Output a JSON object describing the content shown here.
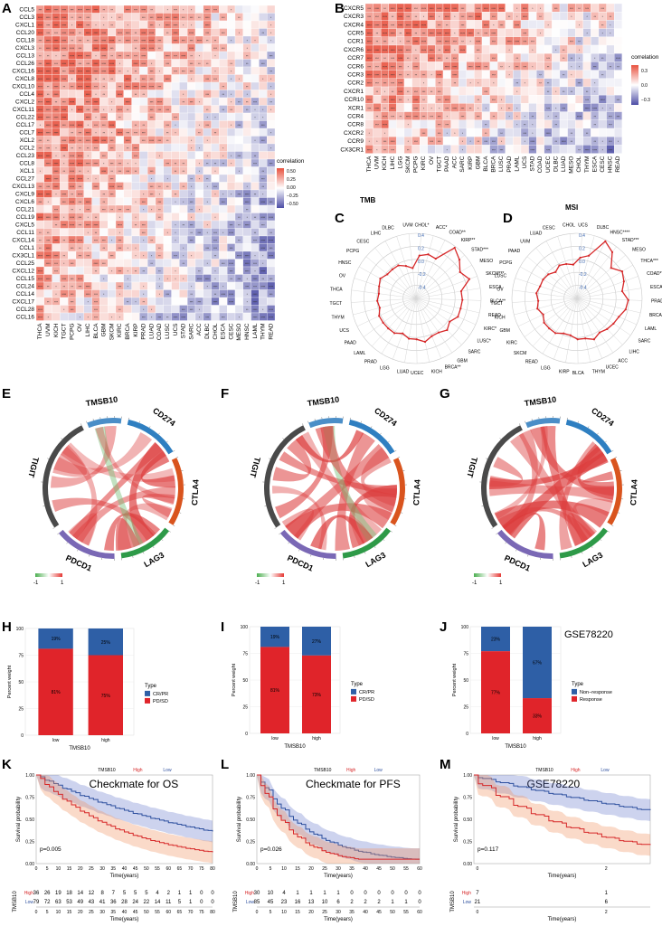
{
  "panels": {
    "A": "A",
    "B": "B",
    "C": "C",
    "D": "D",
    "E": "E",
    "F": "F",
    "G": "G",
    "H": "H",
    "I": "I",
    "J": "J",
    "K": "K",
    "L": "L",
    "M": "M"
  },
  "heatmapA": {
    "rows": [
      "CCL5",
      "CCL3",
      "CXCL1",
      "CCL20",
      "CCL18",
      "CXCL3",
      "CCL13",
      "CCL26",
      "CXCL16",
      "CXCL8",
      "CXCL10",
      "CCL4",
      "CXCL2",
      "CXCL11",
      "CCL22",
      "CCL17",
      "CCL7",
      "XCL2",
      "CCL2",
      "CCL23",
      "CCL8",
      "XCL1",
      "CCL27",
      "CXCL13",
      "CXCL9",
      "CXCL6",
      "CCL21",
      "CCL19",
      "CXCL5",
      "CCL11",
      "CXCL14",
      "CCL1",
      "CX3CL1",
      "CCL25",
      "CXCL12",
      "CCL15",
      "CCL24",
      "CCL14",
      "CXCL17",
      "CCL28",
      "CCL16"
    ],
    "cols": [
      "THCA",
      "UVM",
      "KICH",
      "TGCT",
      "PCPG",
      "OV",
      "LIHC",
      "BLCA",
      "GBM",
      "SKCM",
      "KIRC",
      "BRCA",
      "KIRP",
      "PRAD",
      "LUAD",
      "COAD",
      "LUSC",
      "UCS",
      "STAD",
      "SARC",
      "ACC",
      "DLBC",
      "CHOL",
      "ESCA",
      "CESC",
      "MESO",
      "HNSC",
      "LAML",
      "THYM",
      "READ"
    ],
    "legend_title": "correlation",
    "legend_ticks": [
      "0.50",
      "0.25",
      "0.00",
      "−0.25",
      "−0.50"
    ],
    "xlabel": "TMB"
  },
  "heatmapB": {
    "rows": [
      "CXCR5",
      "CXCR3",
      "CXCR4",
      "CCR5",
      "CCR1",
      "CXCR6",
      "CCR7",
      "CCR6",
      "CCR3",
      "CCR2",
      "CXCR1",
      "CCR10",
      "XCR1",
      "CCR4",
      "CCR8",
      "CXCR2",
      "CCR9",
      "CX3CR1"
    ],
    "cols": [
      "THCA",
      "UVM",
      "KICH",
      "LIHC",
      "LGG",
      "SKCM",
      "PCPG",
      "KIRC",
      "OV",
      "TGCT",
      "PAAD",
      "ACC",
      "SARC",
      "KIRP",
      "GBM",
      "BLCA",
      "BRCA",
      "LUSC",
      "PRAD",
      "LAML",
      "UCS",
      "STAD",
      "COAD",
      "UCEC",
      "DLBC",
      "LUAD",
      "MESO",
      "CHOL",
      "THYM",
      "ESCA",
      "CESC",
      "HNSC",
      "READ"
    ],
    "legend_title": "correlation",
    "legend_ticks": [
      "0.3",
      "0.0",
      "−0.3"
    ],
    "xlabel": "MSI"
  },
  "radarC": {
    "labels": [
      "CHOL*",
      "ACC*",
      "COAD**",
      "KIRP**",
      "STAD***",
      "MESO",
      "SKCM***",
      "ESCA",
      "BLCA**",
      "READ",
      "KIRC*",
      "LUSC*",
      "SARC",
      "GBM",
      "BRCA**",
      "KICH",
      "UCEC",
      "LUAD",
      "LGG",
      "PRAD",
      "LAML",
      "PAAD",
      "UCS",
      "THYM",
      "TGCT",
      "THCA",
      "OV",
      "HNSC",
      "PCPG",
      "CESC",
      "LIHC",
      "DLBC",
      "UVM"
    ],
    "values": [
      0.08,
      0.12,
      0.1,
      0.38,
      0.3,
      0.2,
      0.28,
      0.12,
      0.13,
      0.12,
      0.12,
      0.05,
      0.1,
      0.05,
      0.05,
      0.1,
      0.05,
      0.05,
      0.0,
      0.05,
      0.05,
      0.05,
      0.05,
      0.0,
      0.02,
      0.0,
      0.02,
      0.05,
      0.0,
      0.0,
      0.0,
      -0.05,
      -0.1
    ],
    "ticks": [
      "0.4",
      "0.2",
      "0.0",
      "-0.2",
      "-0.4"
    ]
  },
  "radarD": {
    "labels": [
      "UCS",
      "DLBC",
      "HNSC****",
      "STAD***",
      "MESO",
      "THCA***",
      "COAD**",
      "ESCA",
      "PRAD**",
      "BRCA**",
      "LAML",
      "SARC",
      "LIHC",
      "ACC",
      "UCEC",
      "THYM",
      "BLCA",
      "KIRP",
      "LGG",
      "READ",
      "SKCM",
      "KIRC",
      "GBM",
      "KICH",
      "TGCT",
      "OV",
      "LUSC",
      "PCPG",
      "PAAD",
      "UVM",
      "LUAD",
      "CESC",
      "CHOL"
    ],
    "values": [
      0.05,
      0.1,
      0.38,
      0.3,
      0.12,
      0.22,
      0.18,
      0.12,
      0.2,
      0.18,
      0.12,
      0.1,
      0.08,
      0.05,
      0.1,
      0.05,
      0.05,
      0.0,
      0.0,
      0.05,
      0.05,
      0.05,
      0.0,
      0.05,
      0.02,
      0.05,
      0.02,
      0.02,
      0.0,
      -0.05,
      0.0,
      -0.02,
      -0.05
    ],
    "ticks": [
      "0.4",
      "0.2",
      "0.0",
      "-0.2",
      "-0.4"
    ]
  },
  "chords": {
    "genes": [
      "TMSB10",
      "CD274",
      "CTLA4",
      "LAG3",
      "PDCD1",
      "TIGIT"
    ],
    "legend_low": "-1",
    "legend_high": "1"
  },
  "barH": {
    "ylabel": "Percent weight",
    "xlabel": "TMSB10",
    "categories": [
      "low",
      "high"
    ],
    "legend_title": "Type",
    "legend_items": [
      "CR/PR",
      "PD/SD"
    ],
    "top": [
      19,
      25
    ],
    "bottom": [
      81,
      75
    ],
    "top_labels": [
      "19%",
      "25%"
    ],
    "bottom_labels": [
      "81%",
      "75%"
    ],
    "yticks": [
      "100",
      "75",
      "50",
      "25",
      "0"
    ]
  },
  "barI": {
    "ylabel": "Percent weight",
    "xlabel": "TMSB10",
    "categories": [
      "low",
      "high"
    ],
    "legend_title": "Type",
    "legend_items": [
      "CR/PR",
      "PD/SD"
    ],
    "top": [
      19,
      27
    ],
    "bottom": [
      81,
      73
    ],
    "top_labels": [
      "19%",
      "27%"
    ],
    "bottom_labels": [
      "81%",
      "73%"
    ],
    "yticks": [
      "100",
      "75",
      "50",
      "25",
      "0"
    ]
  },
  "barJ": {
    "title": "GSE78220",
    "ylabel": "Percent weight",
    "xlabel": "TMSB10",
    "categories": [
      "low",
      "high"
    ],
    "legend_title": "Type",
    "legend_items": [
      "Non−response",
      "Response"
    ],
    "top": [
      23,
      67
    ],
    "bottom": [
      77,
      33
    ],
    "top_labels": [
      "23%",
      "67%"
    ],
    "bottom_labels": [
      "77%",
      "33%"
    ],
    "yticks": [
      "100",
      "75",
      "50",
      "25",
      "0"
    ]
  },
  "kmK": {
    "title": "Checkmate for OS",
    "legend_label": "TMSB10",
    "legend_high": "High",
    "legend_low": "Low",
    "pvalue": "p=0.005",
    "ylabel": "Survival probability",
    "xlabel": "Time(years)",
    "xticks": [
      "0",
      "5",
      "10",
      "15",
      "20",
      "25",
      "30",
      "35",
      "40",
      "45",
      "50",
      "55",
      "60",
      "65",
      "70",
      "75",
      "80"
    ],
    "yticks": [
      "1.00",
      "0.75",
      "0.50",
      "0.25",
      "0.00"
    ],
    "risk_title": "TMSB10",
    "risk_high_label": "High",
    "risk_low_label": "Low",
    "risk_high": [
      "36",
      "26",
      "19",
      "18",
      "14",
      "12",
      "8",
      "7",
      "5",
      "5",
      "5",
      "4",
      "2",
      "1",
      "1",
      "0",
      "0"
    ],
    "risk_low": [
      "79",
      "72",
      "63",
      "53",
      "49",
      "43",
      "41",
      "36",
      "28",
      "24",
      "22",
      "14",
      "11",
      "5",
      "1",
      "0",
      "0"
    ]
  },
  "kmL": {
    "title": "Checkmate for PFS",
    "legend_label": "TMSB10",
    "legend_high": "High",
    "legend_low": "Low",
    "pvalue": "p=0.026",
    "ylabel": "Survival probability",
    "xlabel": "Time(years)",
    "xticks": [
      "0",
      "5",
      "10",
      "15",
      "20",
      "25",
      "30",
      "35",
      "40",
      "45",
      "50",
      "55",
      "60"
    ],
    "yticks": [
      "1.00",
      "0.75",
      "0.50",
      "0.25",
      "0.00"
    ],
    "risk_title": "TMSB10",
    "risk_high_label": "High",
    "risk_low_label": "Low",
    "risk_high": [
      "30",
      "10",
      "4",
      "1",
      "1",
      "1",
      "1",
      "0",
      "0",
      "0",
      "0",
      "0",
      "0"
    ],
    "risk_low": [
      "85",
      "45",
      "23",
      "16",
      "13",
      "10",
      "6",
      "2",
      "2",
      "2",
      "1",
      "1",
      "0"
    ]
  },
  "kmM": {
    "title": "GSE78220",
    "legend_label": "TMSB10",
    "legend_high": "High",
    "legend_low": "Low",
    "pvalue": "p=0.117",
    "ylabel": "Survival probability",
    "xlabel": "Time(years)",
    "xticks": [
      "0",
      "2"
    ],
    "yticks": [
      "1.00",
      "0.75",
      "0.50",
      "0.25",
      "0.00"
    ],
    "risk_title": "TMSB10",
    "risk_high_label": "High",
    "risk_low_label": "Low",
    "risk_high": [
      "7",
      "1"
    ],
    "risk_low": [
      "21",
      "6"
    ]
  }
}
